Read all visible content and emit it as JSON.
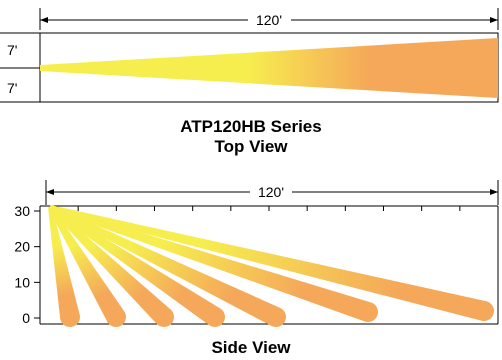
{
  "top_view": {
    "range_label": "120'",
    "width_upper_label": "7'",
    "width_lower_label": "7'",
    "caption_title": "ATP120HB Series",
    "caption_subtitle": "Top View"
  },
  "side_view": {
    "range_label": "120'",
    "y_ticks": [
      "30",
      "20",
      "10",
      "0"
    ],
    "caption": "Side View",
    "beam_count": 7
  },
  "colors": {
    "beam_near": "#f6ee4e",
    "beam_far": "#f5a85a",
    "line": "#000000"
  }
}
